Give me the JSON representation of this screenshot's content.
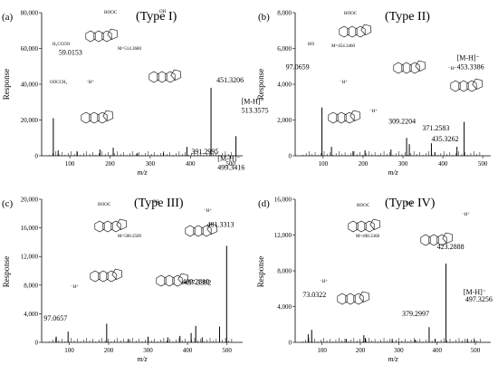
{
  "chart_data": [
    {
      "type": "bar",
      "panel_label": "(a)",
      "title": "(Type I)",
      "ylabel": "Response",
      "xlabel": "m/z",
      "xlim": [
        30,
        530
      ],
      "ylim": [
        0,
        80000
      ],
      "x_ticks": [
        "100",
        "200",
        "300",
        "400",
        "500"
      ],
      "y_ticks": [
        "0",
        "20,000",
        "40,000",
        "60,000",
        "80,000"
      ],
      "peaks": [
        {
          "x": 59.0153,
          "y": 21000
        },
        {
          "x": 71,
          "y": 3000
        },
        {
          "x": 118,
          "y": 2500
        },
        {
          "x": 175,
          "y": 3500
        },
        {
          "x": 208,
          "y": 4500
        },
        {
          "x": 268,
          "y": 1500
        },
        {
          "x": 333,
          "y": 1800
        },
        {
          "x": 391.2995,
          "y": 5000
        },
        {
          "x": 451.3206,
          "y": 38000
        },
        {
          "x": 513.3575,
          "y": 11000
        }
      ],
      "annotations": [
        {
          "text": "59.0153",
          "x": 59.0153
        },
        {
          "text": "451.3206",
          "x": 451.3206
        },
        {
          "text": "391.2995",
          "x": 391.2995
        },
        {
          "text": "[M-H]⁻",
          "x": 513.3575
        },
        {
          "text": "513.3575",
          "x": 513.3575
        }
      ],
      "structure_text": {
        "mass": "M=514.3680",
        "fragment_formula": "OOCCH₃",
        "ester": "H₃CCOO",
        "acid": "HOOC",
        "oh": "OH",
        "radical": "⁻H⁺"
      }
    },
    {
      "type": "bar",
      "panel_label": "(b)",
      "title": "(Type II)",
      "ylabel": "Response",
      "xlabel": "m/z",
      "xlim": [
        30,
        520
      ],
      "ylim": [
        0,
        8000
      ],
      "x_ticks": [
        "100",
        "200",
        "300",
        "400",
        "500"
      ],
      "y_ticks": [
        "0",
        "2,000",
        "4,000",
        "6,000",
        "8,000"
      ],
      "peaks": [
        {
          "x": 97.0659,
          "y": 2700
        },
        {
          "x": 121,
          "y": 500
        },
        {
          "x": 175,
          "y": 250
        },
        {
          "x": 205,
          "y": 300
        },
        {
          "x": 270,
          "y": 350
        },
        {
          "x": 309.2204,
          "y": 1000
        },
        {
          "x": 316,
          "y": 650
        },
        {
          "x": 371.2583,
          "y": 700
        },
        {
          "x": 380,
          "y": 200
        },
        {
          "x": 435.3262,
          "y": 500
        },
        {
          "x": 453.3386,
          "y": 1900
        }
      ],
      "annotations": [
        {
          "text": "97.0659",
          "x": 97.0659
        },
        {
          "text": "309.2204",
          "x": 309.2204
        },
        {
          "text": "371.2583",
          "x": 371.2583
        },
        {
          "text": "435.3262",
          "x": 435.3262
        },
        {
          "text": "[M-H]⁻",
          "x": 453.3386
        },
        {
          "text": "453.3386",
          "x": 453.3386
        }
      ],
      "structure_text": {
        "mass": "M=454.3460",
        "acid": "HOOC",
        "ho": "HO",
        "radical": "⁻H⁺"
      }
    },
    {
      "type": "bar",
      "panel_label": "(c)",
      "title": "(Type III)",
      "ylabel": "Response",
      "xlabel": "m/z",
      "xlim": [
        30,
        540
      ],
      "ylim": [
        0,
        20000
      ],
      "x_ticks": [
        "100",
        "200",
        "300",
        "400",
        "500"
      ],
      "y_ticks": [
        "0",
        "4,000",
        "8,000",
        "12,000",
        "16,000",
        "20,000"
      ],
      "peaks": [
        {
          "x": 67,
          "y": 800
        },
        {
          "x": 97.0657,
          "y": 1500
        },
        {
          "x": 195,
          "y": 2600
        },
        {
          "x": 250,
          "y": 500
        },
        {
          "x": 300,
          "y": 800
        },
        {
          "x": 350,
          "y": 700
        },
        {
          "x": 381,
          "y": 900
        },
        {
          "x": 409.281,
          "y": 1300
        },
        {
          "x": 421,
          "y": 2300
        },
        {
          "x": 437.3392,
          "y": 700
        },
        {
          "x": 481.3313,
          "y": 2200
        },
        {
          "x": 499.3416,
          "y": 13500
        }
      ],
      "annotations": [
        {
          "text": "97.0657",
          "x": 97.0657
        },
        {
          "text": "409.2810",
          "x": 409.281
        },
        {
          "text": "437.3392",
          "x": 437.3392
        },
        {
          "text": "481.3313",
          "x": 481.3313
        },
        {
          "text": "[M-H]⁻",
          "x": 499.3416
        },
        {
          "text": "499.3416",
          "x": 499.3416
        }
      ],
      "structure_text": {
        "mass": "M=500.3509",
        "acid": "HOOC",
        "oh": "OH",
        "radical": "⁻H⁺"
      }
    },
    {
      "type": "bar",
      "panel_label": "(d)",
      "title": "(Type IV)",
      "ylabel": "Response",
      "xlabel": "m/z",
      "xlim": [
        30,
        540
      ],
      "ylim": [
        0,
        16000
      ],
      "x_ticks": [
        "100",
        "200",
        "300",
        "400",
        "500"
      ],
      "y_ticks": [
        "0",
        "4,000",
        "8,000",
        "12,000",
        "16,000"
      ],
      "peaks": [
        {
          "x": 64,
          "y": 900
        },
        {
          "x": 73.0322,
          "y": 1400
        },
        {
          "x": 163,
          "y": 400
        },
        {
          "x": 209,
          "y": 800
        },
        {
          "x": 213,
          "y": 500
        },
        {
          "x": 283,
          "y": 400
        },
        {
          "x": 343,
          "y": 300
        },
        {
          "x": 379.2997,
          "y": 1700
        },
        {
          "x": 395,
          "y": 400
        },
        {
          "x": 423.2888,
          "y": 8800
        },
        {
          "x": 479,
          "y": 400
        },
        {
          "x": 497.3256,
          "y": 300
        }
      ],
      "annotations": [
        {
          "text": "73.0322",
          "x": 73.0322
        },
        {
          "text": "379.2997",
          "x": 379.2997
        },
        {
          "text": "423.2888",
          "x": 423.2888
        },
        {
          "text": "[M-H]⁻",
          "x": 497.3256
        },
        {
          "text": "497.3256",
          "x": 497.3256
        }
      ],
      "structure_text": {
        "mass": "M=498.3368",
        "acid": "HOOC",
        "oh": "OH",
        "radical": "⁻H⁺"
      }
    }
  ]
}
